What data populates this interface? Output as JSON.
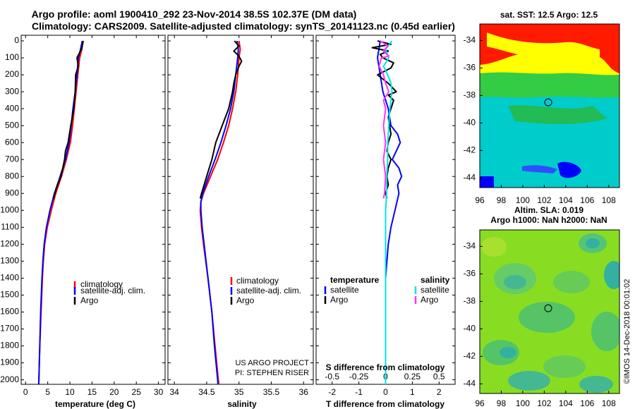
{
  "header": {
    "line1": "Argo profile: aoml 1900410_292 23-Nov-2014 38.5S 102.37E (DM data)",
    "line2": "Climatology: CARS2009. Satellite-adjusted climatology: synTS_20141123.nc (0.45d earlier)"
  },
  "colors": {
    "climatology": "#ff0000",
    "satellite": "#0000ff",
    "argo": "#000000",
    "salinity_satellite": "#00e5e5",
    "salinity_argo": "#ff33ff"
  },
  "chart_data": [
    {
      "type": "line",
      "id": "temperature",
      "xlabel": "temperature (deg C)",
      "ylabel": "",
      "xlim": [
        -1,
        31.5
      ],
      "ylim": [
        2060,
        0
      ],
      "x_ticks": [
        "0",
        "5",
        "10",
        "15",
        "20",
        "25",
        "30"
      ],
      "y_ticks": [
        "0",
        "100",
        "200",
        "300",
        "400",
        "500",
        "600",
        "700",
        "800",
        "900",
        "1000",
        "1100",
        "1200",
        "1300",
        "1400",
        "1500",
        "1600",
        "1700",
        "1800",
        "1900",
        "2000"
      ],
      "legend": [
        "climatology",
        "satellite-adj. clim.",
        "Argo"
      ],
      "series": [
        {
          "name": "climatology",
          "depth": [
            0,
            50,
            100,
            200,
            300,
            400,
            500,
            600,
            700,
            800,
            900,
            1000,
            1100,
            1200,
            1300,
            1400,
            1600,
            1800,
            2000,
            2060
          ],
          "values": [
            13.0,
            12.7,
            12.2,
            11.8,
            11.4,
            11.0,
            10.6,
            10.1,
            9.2,
            8.1,
            6.8,
            5.8,
            4.9,
            4.3,
            4.0,
            3.8,
            3.5,
            3.2,
            3.0,
            2.9
          ]
        },
        {
          "name": "satellite-adj. clim.",
          "depth": [
            0,
            50,
            100,
            200,
            300,
            400,
            500,
            600,
            700,
            800,
            900,
            1000,
            1100,
            1200,
            1300,
            1400,
            1600,
            1800,
            2000,
            2060
          ],
          "values": [
            12.8,
            12.4,
            11.9,
            11.6,
            11.2,
            10.7,
            10.3,
            9.8,
            9.0,
            7.8,
            6.5,
            5.5,
            4.7,
            4.2,
            3.9,
            3.7,
            3.4,
            3.2,
            3.0,
            2.9
          ]
        },
        {
          "name": "Argo",
          "depth": [
            0,
            50,
            100,
            150,
            200,
            300,
            400,
            500,
            600,
            650,
            700,
            800,
            850,
            900,
            930
          ],
          "values": [
            13.0,
            12.6,
            11.6,
            11.9,
            11.3,
            11.2,
            10.9,
            10.2,
            9.6,
            9.0,
            8.8,
            8.0,
            7.2,
            6.6,
            6.3
          ]
        }
      ]
    },
    {
      "type": "line",
      "id": "salinity",
      "xlabel": "salinity",
      "ylabel": "",
      "xlim": [
        33.9,
        36.15
      ],
      "ylim": [
        2060,
        0
      ],
      "x_ticks": [
        "34",
        "34.5",
        "35",
        "35.5",
        "36"
      ],
      "legend": [
        "climatology",
        "satellite-adj. clim.",
        "Argo"
      ],
      "annotations": [
        "US ARGO PROJECT",
        "PI: STEPHEN RISER"
      ],
      "series": [
        {
          "name": "climatology",
          "depth": [
            0,
            50,
            100,
            200,
            300,
            400,
            500,
            600,
            700,
            800,
            900,
            950,
            1000,
            1100,
            1200,
            1400,
            1600,
            1800,
            2000,
            2060
          ],
          "values": [
            35.0,
            35.02,
            35.0,
            34.98,
            34.95,
            34.9,
            34.84,
            34.76,
            34.67,
            34.56,
            34.45,
            34.41,
            34.4,
            34.42,
            34.45,
            34.52,
            34.58,
            34.63,
            34.68,
            34.7
          ]
        },
        {
          "name": "satellite-adj. clim.",
          "depth": [
            0,
            50,
            100,
            200,
            300,
            400,
            500,
            600,
            700,
            800,
            900,
            950,
            1000,
            1100,
            1200,
            1400,
            1600,
            1800,
            2000,
            2060
          ],
          "values": [
            34.97,
            34.99,
            34.98,
            34.95,
            34.92,
            34.87,
            34.8,
            34.72,
            34.63,
            34.53,
            34.44,
            34.41,
            34.41,
            34.43,
            34.46,
            34.52,
            34.58,
            34.62,
            34.67,
            34.68
          ]
        },
        {
          "name": "Argo",
          "depth": [
            0,
            30,
            60,
            90,
            120,
            150,
            200,
            250,
            300,
            400,
            500,
            600,
            700,
            800,
            900,
            930
          ],
          "values": [
            34.93,
            35.0,
            34.92,
            35.0,
            35.04,
            35.0,
            34.95,
            34.92,
            34.9,
            34.84,
            34.74,
            34.64,
            34.58,
            34.5,
            34.42,
            34.4
          ]
        }
      ]
    },
    {
      "type": "line",
      "id": "difference",
      "xlabel": "T difference from climatology",
      "x2label": "S difference from climatology",
      "xlim": [
        -2.6,
        2.6
      ],
      "x2lim": [
        -0.65,
        0.65
      ],
      "ylim": [
        2060,
        0
      ],
      "x_ticks": [
        "-2",
        "-1",
        "0",
        "1",
        "2"
      ],
      "x2_ticks": [
        "-0.5",
        "-0.25",
        "0",
        "0.25",
        "0.5"
      ],
      "legend_temperature_title": "temperature",
      "legend_salinity_title": "salinity",
      "legend_temperature": [
        "satellite",
        "Argo"
      ],
      "legend_salinity": [
        "satellite",
        "Argo"
      ],
      "series": [
        {
          "name": "T satellite",
          "axis": "T",
          "depth": [
            0,
            100,
            200,
            300,
            400,
            500,
            550,
            600,
            650,
            700,
            750,
            800,
            850,
            900,
            1000,
            1100,
            1200,
            1300,
            1400,
            1600,
            1800,
            2000,
            2060
          ],
          "values": [
            -0.2,
            -0.3,
            -0.2,
            -0.1,
            0.1,
            0.2,
            0.45,
            0.55,
            0.4,
            0.25,
            0.5,
            0.6,
            0.45,
            0.5,
            0.35,
            0.2,
            0.1,
            0.05,
            0.0,
            0.0,
            0.0,
            0.0,
            0.0
          ]
        },
        {
          "name": "T Argo",
          "axis": "T",
          "depth": [
            0,
            20,
            40,
            60,
            80,
            100,
            130,
            160,
            200,
            250,
            300,
            320,
            350,
            400,
            450,
            500,
            550,
            600,
            650,
            700,
            750,
            800,
            850,
            900,
            930
          ],
          "values": [
            -0.3,
            0.2,
            -0.5,
            0.1,
            -0.2,
            -0.1,
            0.3,
            0.2,
            -0.3,
            0.1,
            0.4,
            0.1,
            0.3,
            0.2,
            0.1,
            0.15,
            0.2,
            0.1,
            0.05,
            0.2,
            0.1,
            0.05,
            0.1,
            0.0,
            0.05
          ]
        },
        {
          "name": "S satellite",
          "axis": "S",
          "depth": [
            0,
            50,
            100,
            150,
            200,
            250,
            300,
            350,
            400,
            500,
            600,
            700,
            800,
            900,
            1000,
            1200,
            1400,
            1600,
            1800,
            2000,
            2060
          ],
          "values": [
            0.06,
            0.0,
            0.03,
            -0.02,
            0.02,
            0.05,
            0.06,
            0.05,
            0.04,
            0.03,
            0.02,
            0.02,
            0.01,
            0.01,
            0.0,
            0.0,
            0.0,
            0.0,
            0.0,
            0.0,
            0.0
          ]
        },
        {
          "name": "S Argo",
          "axis": "S",
          "depth": [
            0,
            30,
            60,
            90,
            100,
            150,
            200,
            250,
            300,
            350,
            400,
            500,
            600,
            700,
            800,
            900,
            930
          ],
          "values": [
            -0.05,
            0.02,
            -0.02,
            0.03,
            -0.04,
            -0.06,
            -0.02,
            0.0,
            0.03,
            -0.02,
            0.0,
            -0.02,
            0.0,
            -0.02,
            0.0,
            -0.01,
            -0.02
          ]
        }
      ]
    }
  ],
  "maps": [
    {
      "id": "sst",
      "title": "sat. SST: 12.5 Argo: 12.5",
      "x_ticks": [
        "96",
        "98",
        "100",
        "102",
        "104",
        "106",
        "108"
      ],
      "y_ticks": [
        "-34",
        "-36",
        "-38",
        "-40",
        "-42",
        "-44"
      ],
      "lon_range": [
        96,
        109
      ],
      "lat_range": [
        -44.7,
        -32.8
      ],
      "marker": {
        "lon": 102.37,
        "lat": -38.5
      }
    },
    {
      "id": "sla",
      "title1": "Altim. SLA: 0.019",
      "title2": "Argo h1000: NaN h2000: NaN",
      "x_ticks": [
        "96",
        "98",
        "100",
        "102",
        "104",
        "106",
        "108"
      ],
      "y_ticks": [
        "-34",
        "-36",
        "-38",
        "-40",
        "-42",
        "-44"
      ],
      "lon_range": [
        96,
        109
      ],
      "lat_range": [
        -44.7,
        -32.8
      ],
      "marker": {
        "lon": 102.37,
        "lat": -38.5
      }
    }
  ],
  "watermark": "©IMOS 14-Dec-2018 00:01:02"
}
